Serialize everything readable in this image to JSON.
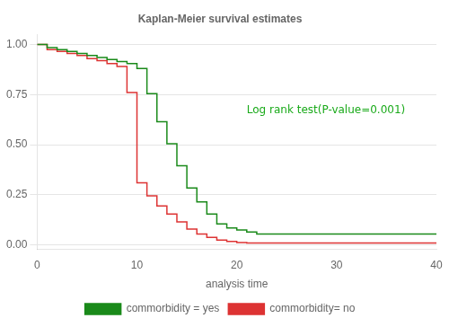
{
  "chart_data": {
    "type": "line",
    "line_style": "step",
    "title": "Kaplan-Meier survival estimates",
    "xlabel": "analysis time",
    "xlim": [
      0,
      40
    ],
    "ylim": [
      -0.02,
      1.05
    ],
    "xticks": [
      0,
      10,
      20,
      30,
      40
    ],
    "yticks": [
      {
        "value": 0.0,
        "label": "0.00"
      },
      {
        "value": 0.25,
        "label": "0.25"
      },
      {
        "value": 0.5,
        "label": "0.50"
      },
      {
        "value": 0.75,
        "label": "0.75"
      },
      {
        "value": 1.0,
        "label": "1.00"
      }
    ],
    "grid": "y",
    "legend": "bottom",
    "annotation": {
      "text": "Log rank test(P-value=0.001)",
      "x": 21,
      "y": 0.7,
      "color": "#1aaa1a"
    },
    "series": [
      {
        "name": "commorbidity = yes",
        "color": "#1a8a1a",
        "x": [
          0,
          1,
          2,
          3,
          4,
          5,
          6,
          7,
          8,
          9,
          10,
          11,
          12,
          13,
          14,
          15,
          16,
          17,
          18,
          19,
          20,
          21,
          22,
          38,
          40
        ],
        "values": [
          1.0,
          0.985,
          0.975,
          0.965,
          0.955,
          0.945,
          0.935,
          0.925,
          0.915,
          0.905,
          0.88,
          0.755,
          0.615,
          0.505,
          0.395,
          0.285,
          0.215,
          0.155,
          0.105,
          0.085,
          0.075,
          0.065,
          0.055,
          0.055,
          0.055
        ]
      },
      {
        "name": "commorbidity= no",
        "color": "#dd3333",
        "x": [
          0,
          1,
          2,
          3,
          4,
          5,
          6,
          7,
          8,
          9,
          10,
          11,
          12,
          13,
          14,
          15,
          16,
          17,
          18,
          19,
          20,
          21,
          25,
          40
        ],
        "values": [
          1.0,
          0.975,
          0.965,
          0.955,
          0.945,
          0.93,
          0.92,
          0.905,
          0.89,
          0.76,
          0.31,
          0.245,
          0.195,
          0.155,
          0.115,
          0.08,
          0.055,
          0.038,
          0.025,
          0.018,
          0.012,
          0.01,
          0.01,
          0.01
        ]
      }
    ]
  }
}
